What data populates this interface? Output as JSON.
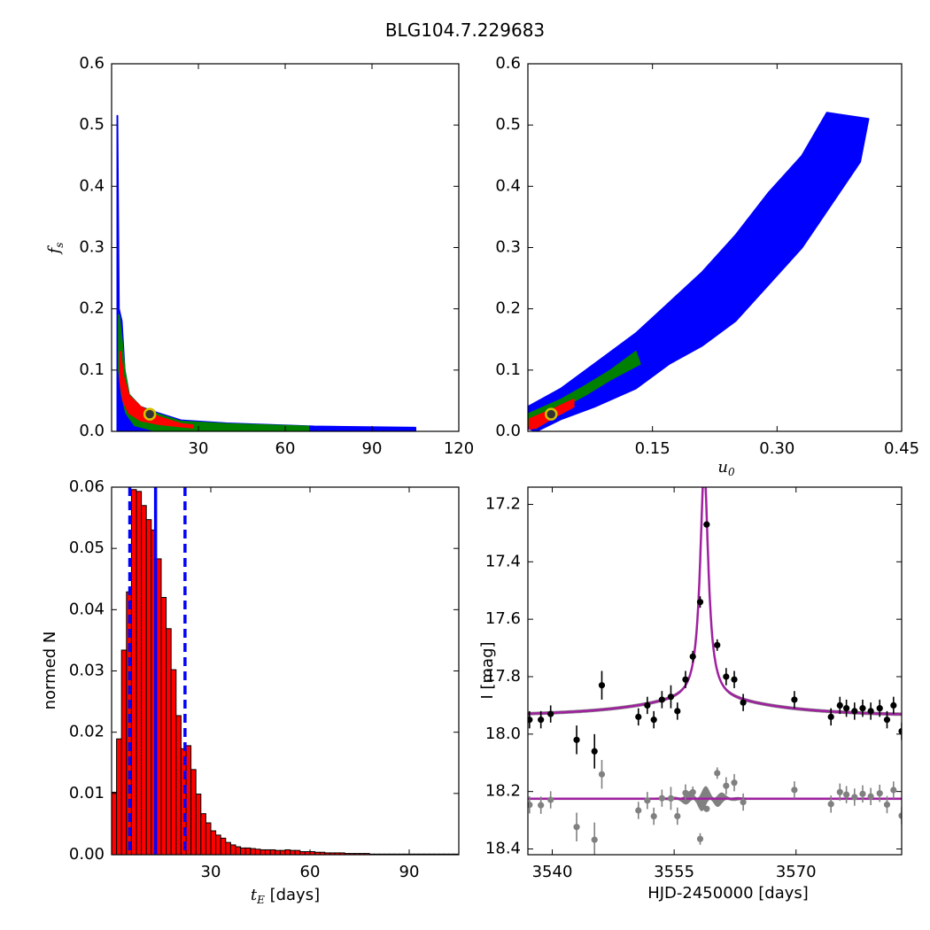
{
  "figure_title": "BLG104.7.229683",
  "colors": {
    "blue": "#0000ff",
    "green": "#008000",
    "red": "#ff0000",
    "black": "#000000",
    "gray": "#808080",
    "magenta": "#a020a0",
    "marker_fill": "#333333",
    "marker_ring": "#d4c000"
  },
  "chart_data": [
    {
      "type": "heatmap",
      "panel": "top-left",
      "ylabel": "f_s",
      "xlabel": "",
      "xlim": [
        0,
        120
      ],
      "ylim": [
        0,
        0.6
      ],
      "xticks": [
        "30",
        "60",
        "90",
        "120"
      ],
      "yticks": [
        "0.0",
        "0.1",
        "0.2",
        "0.3",
        "0.4",
        "0.5",
        "0.6"
      ],
      "regions": {
        "blue": [
          [
            2,
            0.515
          ],
          [
            2.5,
            0.2
          ],
          [
            3.5,
            0.18
          ],
          [
            4.5,
            0.1
          ],
          [
            6,
            0.06
          ],
          [
            10,
            0.04
          ],
          [
            16,
            0.03
          ],
          [
            24,
            0.018
          ],
          [
            40,
            0.013
          ],
          [
            70,
            0.008
          ],
          [
            105,
            0.006
          ],
          [
            105,
            0.0
          ],
          [
            2,
            0.0
          ]
        ],
        "green": [
          [
            2.5,
            0.19
          ],
          [
            3.5,
            0.15
          ],
          [
            4.5,
            0.1
          ],
          [
            6,
            0.06
          ],
          [
            10,
            0.04
          ],
          [
            16,
            0.028
          ],
          [
            24,
            0.016
          ],
          [
            40,
            0.012
          ],
          [
            68,
            0.008
          ],
          [
            68,
            0.0
          ],
          [
            16,
            0.0
          ],
          [
            8,
            0.01
          ],
          [
            5,
            0.03
          ],
          [
            3.5,
            0.06
          ],
          [
            2.5,
            0.1
          ]
        ],
        "red": [
          [
            3,
            0.13
          ],
          [
            4,
            0.09
          ],
          [
            6,
            0.058
          ],
          [
            10,
            0.04
          ],
          [
            16,
            0.024
          ],
          [
            24,
            0.012
          ],
          [
            28,
            0.01
          ],
          [
            28,
            0.006
          ],
          [
            16,
            0.012
          ],
          [
            10,
            0.018
          ],
          [
            6,
            0.03
          ],
          [
            4,
            0.05
          ],
          [
            3,
            0.08
          ]
        ]
      },
      "best_fit": {
        "x": 13.2,
        "y": 0.028
      }
    },
    {
      "type": "heatmap",
      "panel": "top-right",
      "xlabel": "u_0",
      "ylabel": "",
      "xlim": [
        0,
        0.45
      ],
      "ylim": [
        0,
        0.6
      ],
      "xticks": [
        "0.15",
        "0.30",
        "0.45"
      ],
      "yticks": [
        "0.0",
        "0.1",
        "0.2",
        "0.3",
        "0.4",
        "0.5",
        "0.6"
      ],
      "regions": {
        "blue": [
          [
            0.0,
            0.005
          ],
          [
            0.0,
            0.04
          ],
          [
            0.04,
            0.07
          ],
          [
            0.09,
            0.12
          ],
          [
            0.13,
            0.16
          ],
          [
            0.17,
            0.21
          ],
          [
            0.21,
            0.26
          ],
          [
            0.25,
            0.32
          ],
          [
            0.29,
            0.39
          ],
          [
            0.33,
            0.45
          ],
          [
            0.36,
            0.52
          ],
          [
            0.41,
            0.51
          ],
          [
            0.4,
            0.44
          ],
          [
            0.37,
            0.38
          ],
          [
            0.33,
            0.3
          ],
          [
            0.29,
            0.24
          ],
          [
            0.25,
            0.18
          ],
          [
            0.21,
            0.14
          ],
          [
            0.17,
            0.11
          ],
          [
            0.13,
            0.07
          ],
          [
            0.08,
            0.04
          ],
          [
            0.04,
            0.02
          ],
          [
            0.01,
            0.0
          ]
        ],
        "green": [
          [
            0.0,
            0.01
          ],
          [
            0.0,
            0.028
          ],
          [
            0.04,
            0.052
          ],
          [
            0.07,
            0.075
          ],
          [
            0.1,
            0.1
          ],
          [
            0.13,
            0.13
          ],
          [
            0.135,
            0.11
          ],
          [
            0.1,
            0.085
          ],
          [
            0.07,
            0.06
          ],
          [
            0.04,
            0.038
          ],
          [
            0.02,
            0.02
          ],
          [
            0.01,
            0.005
          ]
        ],
        "red": [
          [
            0.002,
            0.004
          ],
          [
            0.002,
            0.02
          ],
          [
            0.03,
            0.036
          ],
          [
            0.055,
            0.052
          ],
          [
            0.055,
            0.04
          ],
          [
            0.03,
            0.022
          ],
          [
            0.01,
            0.006
          ]
        ]
      },
      "best_fit": {
        "x": 0.028,
        "y": 0.028
      }
    },
    {
      "type": "bar",
      "panel": "bottom-left",
      "xlabel": "t_E [days]",
      "ylabel": "normed N",
      "xlim": [
        0,
        105
      ],
      "ylim": [
        0,
        0.06
      ],
      "xticks": [
        "30",
        "60",
        "90"
      ],
      "yticks": [
        "0.00",
        "0.01",
        "0.02",
        "0.03",
        "0.04",
        "0.05",
        "0.06"
      ],
      "bin_start": 0,
      "bin_width": 1.5,
      "values": [
        0.0102,
        0.0189,
        0.0334,
        0.0429,
        0.0596,
        0.0593,
        0.057,
        0.0547,
        0.053,
        0.0483,
        0.042,
        0.0369,
        0.0302,
        0.0227,
        0.0173,
        0.0178,
        0.0139,
        0.0099,
        0.0067,
        0.0052,
        0.0039,
        0.0032,
        0.0027,
        0.002,
        0.0016,
        0.0013,
        0.0011,
        0.0011,
        0.001,
        0.0009,
        0.0008,
        0.0008,
        0.0008,
        0.0007,
        0.0007,
        0.0008,
        0.0007,
        0.0007,
        0.0005,
        0.0005,
        0.0005,
        0.0004,
        0.0004,
        0.0003,
        0.0003,
        0.0003,
        0.0003,
        0.0002,
        0.0002,
        0.0002,
        0.0002,
        0.0002,
        0.0001,
        0.0001,
        0.0001,
        0.0001,
        0.0001,
        0.0001,
        0.0001,
        0.0001,
        0.0001,
        0.0001,
        0.0001,
        0.0001,
        0.0001,
        0.0001,
        0.0001,
        0.0001,
        0.0001,
        0.0001
      ],
      "vlines": [
        {
          "x": 13.3,
          "style": "solid"
        },
        {
          "x": 5.5,
          "style": "dashed"
        },
        {
          "x": 22.2,
          "style": "dashed"
        }
      ]
    },
    {
      "type": "line",
      "panel": "bottom-right",
      "xlabel": "HJD-2450000 [days]",
      "ylabel": "I [mag]",
      "xlim": [
        3537,
        3583
      ],
      "ylim": [
        18.42,
        17.14
      ],
      "xticks": [
        "3540",
        "3555",
        "3570"
      ],
      "yticks": [
        "17.2",
        "17.4",
        "17.6",
        "17.8",
        "18.0",
        "18.2",
        "18.4"
      ],
      "model": {
        "t0": 3558.7,
        "baseline": 17.94,
        "amplitude": 0.8,
        "width": 1.3
      },
      "residual_baseline": 18.225,
      "data_points": [
        {
          "t": 3537.2,
          "m": 17.95,
          "e": 0.03
        },
        {
          "t": 3538.6,
          "m": 17.95,
          "e": 0.03
        },
        {
          "t": 3539.8,
          "m": 17.93,
          "e": 0.03
        },
        {
          "t": 3543.0,
          "m": 18.02,
          "e": 0.05
        },
        {
          "t": 3545.2,
          "m": 18.06,
          "e": 0.06
        },
        {
          "t": 3546.1,
          "m": 17.83,
          "e": 0.05
        },
        {
          "t": 3550.6,
          "m": 17.94,
          "e": 0.03
        },
        {
          "t": 3551.7,
          "m": 17.9,
          "e": 0.03
        },
        {
          "t": 3552.5,
          "m": 17.95,
          "e": 0.03
        },
        {
          "t": 3553.5,
          "m": 17.88,
          "e": 0.03
        },
        {
          "t": 3554.6,
          "m": 17.87,
          "e": 0.04
        },
        {
          "t": 3555.4,
          "m": 17.92,
          "e": 0.03
        },
        {
          "t": 3556.4,
          "m": 17.81,
          "e": 0.03
        },
        {
          "t": 3557.3,
          "m": 17.73,
          "e": 0.02
        },
        {
          "t": 3558.2,
          "m": 17.54,
          "e": 0.02
        },
        {
          "t": 3559.0,
          "m": 17.27,
          "e": 0.01
        },
        {
          "t": 3560.3,
          "m": 17.69,
          "e": 0.02
        },
        {
          "t": 3561.4,
          "m": 17.8,
          "e": 0.03
        },
        {
          "t": 3562.4,
          "m": 17.81,
          "e": 0.03
        },
        {
          "t": 3563.5,
          "m": 17.89,
          "e": 0.03
        },
        {
          "t": 3569.8,
          "m": 17.88,
          "e": 0.03
        },
        {
          "t": 3574.3,
          "m": 17.94,
          "e": 0.03
        },
        {
          "t": 3575.4,
          "m": 17.9,
          "e": 0.03
        },
        {
          "t": 3576.2,
          "m": 17.91,
          "e": 0.03
        },
        {
          "t": 3577.2,
          "m": 17.92,
          "e": 0.03
        },
        {
          "t": 3578.2,
          "m": 17.91,
          "e": 0.03
        },
        {
          "t": 3579.2,
          "m": 17.92,
          "e": 0.03
        },
        {
          "t": 3580.3,
          "m": 17.91,
          "e": 0.03
        },
        {
          "t": 3581.2,
          "m": 17.95,
          "e": 0.03
        },
        {
          "t": 3582.0,
          "m": 17.9,
          "e": 0.03
        },
        {
          "t": 3583.0,
          "m": 17.99,
          "e": 0.03
        }
      ]
    }
  ]
}
